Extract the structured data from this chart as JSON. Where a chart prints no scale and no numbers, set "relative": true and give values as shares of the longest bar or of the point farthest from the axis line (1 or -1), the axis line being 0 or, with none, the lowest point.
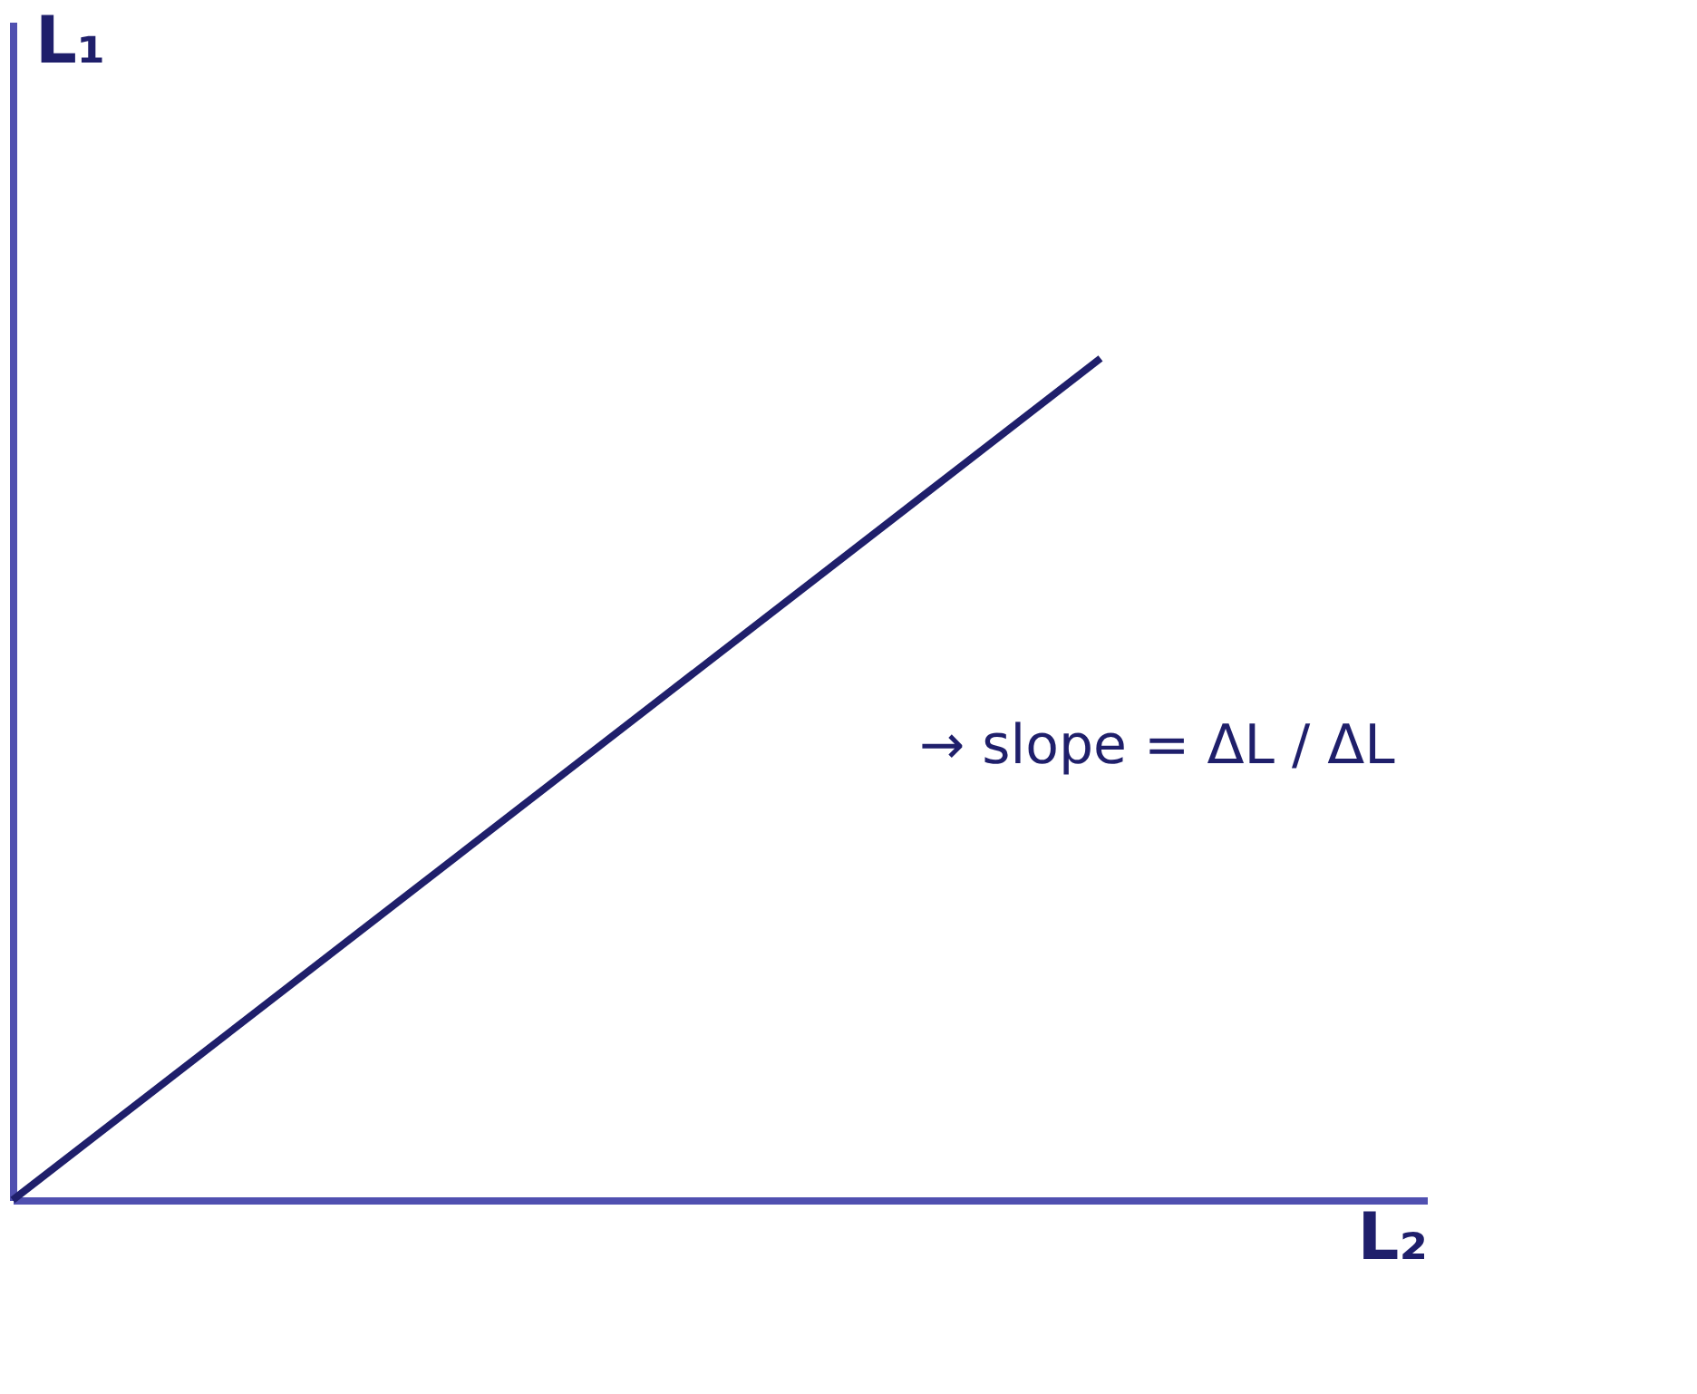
{
  "chart_data": {
    "type": "line",
    "relative": true,
    "xlabel": "L₂",
    "ylabel": "L₁",
    "categories": [
      null,
      null
    ],
    "series": [
      {
        "color": "#1f1f6b",
        "values": [
          0,
          1
        ]
      }
    ],
    "annotations": [
      "→ slope = ΔL / ΔL"
    ],
    "grid": false,
    "legend": false,
    "tick_labels": false,
    "marker": "none",
    "line_style": "solid"
  }
}
